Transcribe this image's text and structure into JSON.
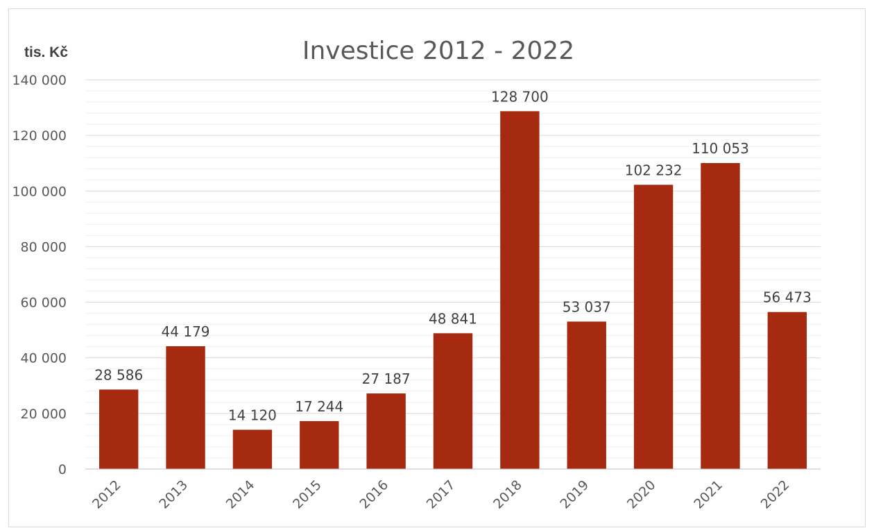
{
  "chart_data": {
    "type": "bar",
    "title": "Investice  2012 - 2022",
    "ylabel": "tis. Kč",
    "xlabel": "",
    "categories": [
      "2012",
      "2013",
      "2014",
      "2015",
      "2016",
      "2017",
      "2018",
      "2019",
      "2020",
      "2021",
      "2022"
    ],
    "values": [
      28586,
      44179,
      14120,
      17244,
      27187,
      48841,
      128700,
      53037,
      102232,
      110053,
      56473
    ],
    "value_labels": [
      "28 586",
      "44 179",
      "14 120",
      "17 244",
      "27 187",
      "48 841",
      "128 700",
      "53 037",
      "102 232",
      "110 053",
      "56 473"
    ],
    "ylim": [
      0,
      140000
    ],
    "y_major_step": 20000,
    "y_minor_step": 4000,
    "y_tick_labels": [
      "0",
      "20 000",
      "40 000",
      "60 000",
      "80 000",
      "100 000",
      "120 000",
      "140 000"
    ],
    "grid": true,
    "legend": false,
    "bar_color": "#A52A0F"
  }
}
